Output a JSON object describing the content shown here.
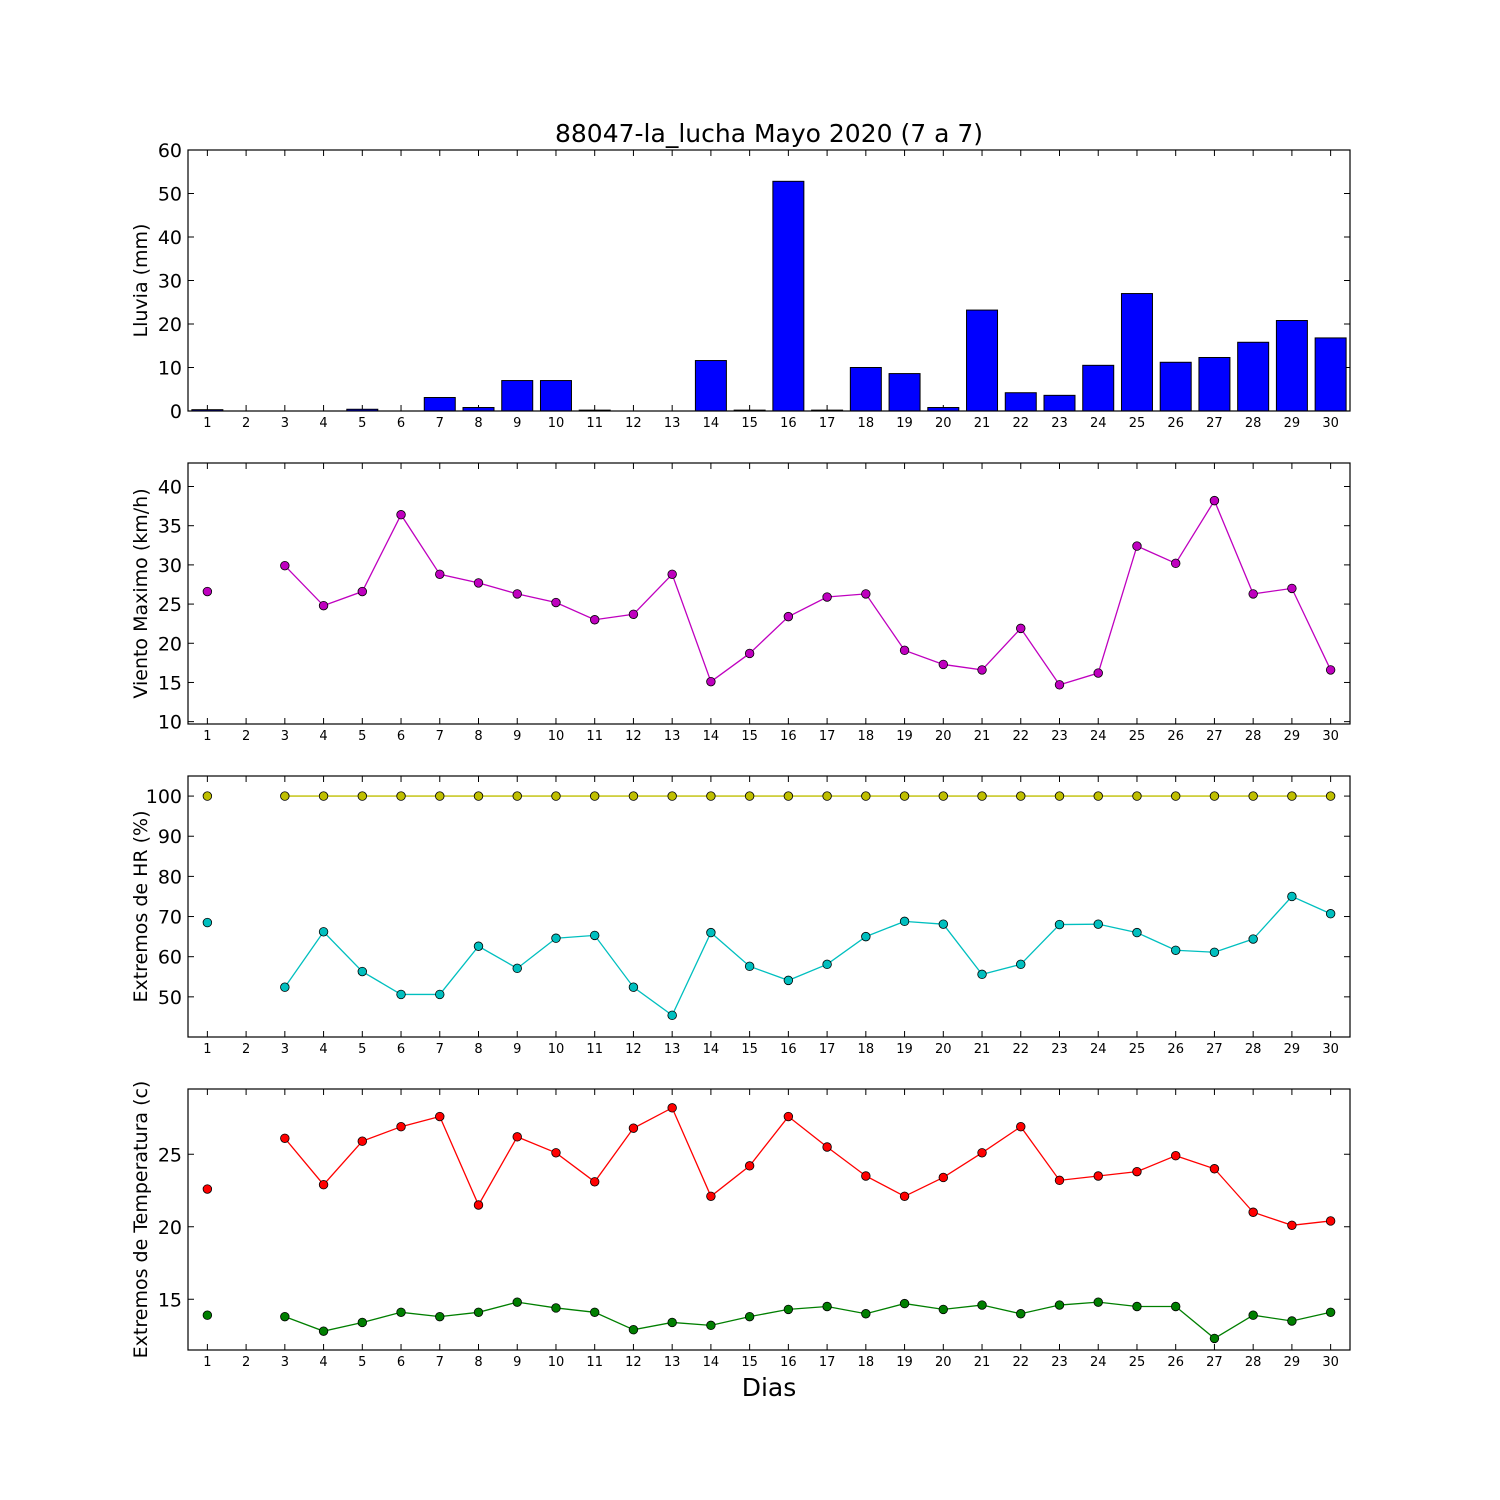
{
  "figure": {
    "title": "88047-la_lucha Mayo 2020  (7 a 7)",
    "xlabel": "Dias"
  },
  "chart_data": [
    {
      "type": "bar",
      "id": "lluvia",
      "ylabel": "Lluvia (mm)",
      "ylim": [
        0,
        60
      ],
      "yticks": [
        0,
        10,
        20,
        30,
        40,
        50,
        60
      ],
      "x": [
        1,
        2,
        3,
        4,
        5,
        6,
        7,
        8,
        9,
        10,
        11,
        12,
        13,
        14,
        15,
        16,
        17,
        18,
        19,
        20,
        21,
        22,
        23,
        24,
        25,
        26,
        27,
        28,
        29,
        30
      ],
      "series": [
        {
          "color": "#0000ff",
          "values": [
            0.3,
            0,
            0,
            0,
            0.4,
            0,
            3.1,
            0.8,
            7,
            7,
            0.2,
            0,
            0,
            11.6,
            0.2,
            52.8,
            0.2,
            10,
            8.6,
            0.8,
            23.2,
            4.2,
            3.6,
            10.5,
            27,
            11.2,
            12.3,
            15.8,
            20.8,
            16.8
          ]
        }
      ]
    },
    {
      "type": "line",
      "id": "viento",
      "ylabel": "Viento Maximo (km/h)",
      "ylim": [
        9.7,
        43
      ],
      "yticks": [
        10,
        15,
        20,
        25,
        30,
        35,
        40
      ],
      "x": [
        1,
        2,
        3,
        4,
        5,
        6,
        7,
        8,
        9,
        10,
        11,
        12,
        13,
        14,
        15,
        16,
        17,
        18,
        19,
        20,
        21,
        22,
        23,
        24,
        25,
        26,
        27,
        28,
        29,
        30
      ],
      "series": [
        {
          "color": "#bf00bf",
          "values": [
            26.6,
            null,
            29.9,
            24.8,
            26.6,
            36.4,
            28.8,
            27.7,
            26.3,
            25.2,
            23,
            23.7,
            28.8,
            15.1,
            18.7,
            23.4,
            25.9,
            26.3,
            19.1,
            17.3,
            16.6,
            21.9,
            14.7,
            16.2,
            32.4,
            30.2,
            38.2,
            26.3,
            27,
            16.6
          ]
        }
      ]
    },
    {
      "type": "line",
      "id": "humedad",
      "ylabel": "Extremos de HR (%)",
      "ylim": [
        40,
        105
      ],
      "yticks": [
        50,
        60,
        70,
        80,
        90,
        100
      ],
      "x": [
        1,
        2,
        3,
        4,
        5,
        6,
        7,
        8,
        9,
        10,
        11,
        12,
        13,
        14,
        15,
        16,
        17,
        18,
        19,
        20,
        21,
        22,
        23,
        24,
        25,
        26,
        27,
        28,
        29,
        30
      ],
      "series": [
        {
          "color": "#bfbf00",
          "values": [
            100,
            null,
            100,
            100,
            100,
            100,
            100,
            100,
            100,
            100,
            100,
            100,
            100,
            100,
            100,
            100,
            100,
            100,
            100,
            100,
            100,
            100,
            100,
            100,
            100,
            100,
            100,
            100,
            100,
            100
          ]
        },
        {
          "color": "#00bfbf",
          "values": [
            68.5,
            null,
            52.4,
            66.2,
            56.3,
            50.6,
            50.6,
            62.6,
            57.1,
            64.6,
            65.3,
            52.4,
            45.4,
            66,
            57.6,
            54.1,
            58.1,
            65,
            68.8,
            68.1,
            55.6,
            58.1,
            68,
            68.1,
            66,
            61.6,
            61.1,
            64.4,
            75,
            70.7
          ]
        }
      ]
    },
    {
      "type": "line",
      "id": "temperatura",
      "ylabel": "Extremos de Temperatura (c)",
      "ylim": [
        11.5,
        29.5
      ],
      "yticks": [
        15,
        20,
        25
      ],
      "x": [
        1,
        2,
        3,
        4,
        5,
        6,
        7,
        8,
        9,
        10,
        11,
        12,
        13,
        14,
        15,
        16,
        17,
        18,
        19,
        20,
        21,
        22,
        23,
        24,
        25,
        26,
        27,
        28,
        29,
        30
      ],
      "series": [
        {
          "color": "#ff0000",
          "values": [
            22.6,
            null,
            26.1,
            22.9,
            25.9,
            26.9,
            27.6,
            21.5,
            26.2,
            25.1,
            23.1,
            26.8,
            28.2,
            22.1,
            24.2,
            27.6,
            25.5,
            23.5,
            22.1,
            23.4,
            25.1,
            26.9,
            23.2,
            23.5,
            23.8,
            24.9,
            24,
            21,
            20.1,
            20.4
          ]
        },
        {
          "color": "#007f00",
          "values": [
            13.9,
            null,
            13.8,
            12.8,
            13.4,
            14.1,
            13.8,
            14.1,
            14.8,
            14.4,
            14.1,
            12.9,
            13.4,
            13.2,
            13.8,
            14.3,
            14.5,
            14,
            14.7,
            14.3,
            14.6,
            14,
            14.6,
            14.8,
            14.5,
            14.5,
            12.3,
            13.9,
            13.5,
            14.1
          ]
        }
      ]
    }
  ]
}
